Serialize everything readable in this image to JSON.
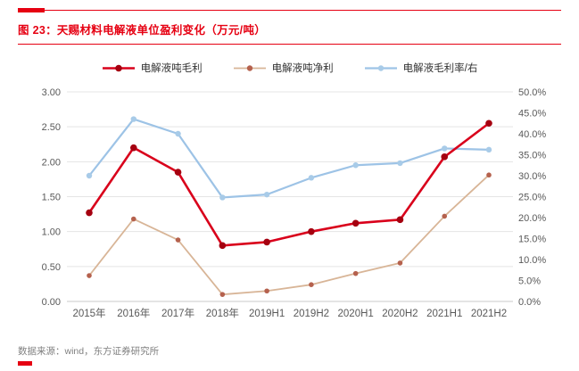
{
  "title": "图 23：天赐材料电解液单位盈利变化（万元/吨）",
  "source": "数据来源：wind，东方证券研究所",
  "colors": {
    "accent_red": "#e60012",
    "grid": "#e5e5e5",
    "axis_line": "#c9c9c9",
    "axis_text": "#595959"
  },
  "chart_data": {
    "type": "line",
    "title": "图 23：天赐材料电解液单位盈利变化（万元/吨）",
    "categories": [
      "2015年",
      "2016年",
      "2017年",
      "2018年",
      "2019H1",
      "2019H2",
      "2020H1",
      "2020H2",
      "2021H1",
      "2021H2"
    ],
    "series": [
      {
        "name": "电解液吨毛利",
        "axis": "left",
        "color": "#d9001b",
        "marker_color": "#a50010",
        "line_width": 2.6,
        "marker_radius": 3.8,
        "values": [
          1.27,
          2.2,
          1.85,
          0.8,
          0.85,
          1.0,
          1.12,
          1.17,
          2.07,
          2.55
        ]
      },
      {
        "name": "电解液吨净利",
        "axis": "left",
        "color": "#d8b597",
        "marker_color": "#b5614d",
        "line_width": 1.8,
        "marker_radius": 2.8,
        "values": [
          0.37,
          1.18,
          0.88,
          0.1,
          0.15,
          0.24,
          0.4,
          0.55,
          1.22,
          1.81
        ]
      },
      {
        "name": "电解液毛利率/右",
        "axis": "right",
        "color": "#9dc3e6",
        "marker_color": "#a8cbe8",
        "line_width": 2.2,
        "marker_radius": 3.2,
        "values": [
          30.0,
          43.5,
          40.0,
          24.8,
          25.5,
          29.5,
          32.5,
          33.0,
          36.5,
          36.2
        ]
      }
    ],
    "left_axis": {
      "min": 0,
      "max": 3,
      "step": 0.5,
      "labels": [
        "0.00",
        "0.50",
        "1.00",
        "1.50",
        "2.00",
        "2.50",
        "3.00"
      ]
    },
    "right_axis": {
      "min": 0,
      "max": 50,
      "step": 5,
      "labels": [
        "0.0%",
        "5.0%",
        "10.0%",
        "15.0%",
        "20.0%",
        "25.0%",
        "30.0%",
        "35.0%",
        "40.0%",
        "45.0%",
        "50.0%"
      ]
    },
    "grid": true,
    "legend_position": "top"
  }
}
